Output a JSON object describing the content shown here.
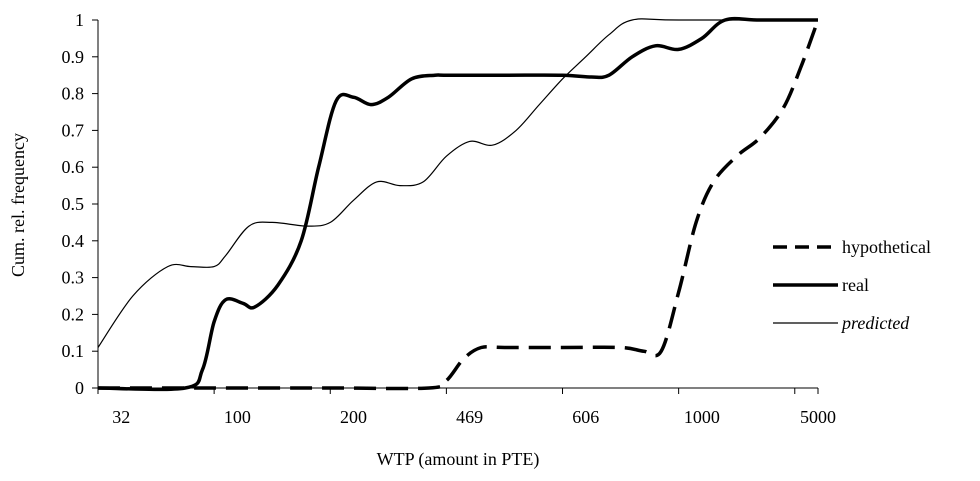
{
  "chart_data": {
    "type": "line",
    "title": "",
    "xlabel": "WTP (amount in PTE)",
    "ylabel": "Cum. rel. frequency",
    "x_tick_labels": [
      "32",
      "100",
      "200",
      "469",
      "606",
      "1000",
      "5000"
    ],
    "y_tick_labels": [
      "0",
      "0.1",
      "0.2",
      "0.3",
      "0.4",
      "0.5",
      "0.6",
      "0.7",
      "0.8",
      "0.9",
      "1"
    ],
    "ylim": [
      0,
      1
    ],
    "grid": false,
    "legend_position": "right",
    "x_scale": "categorical",
    "series": [
      {
        "name": "hypothetical",
        "style": "dashed-thick",
        "points": [
          [
            0.0,
            0
          ],
          [
            1.0,
            0
          ],
          [
            2.0,
            0
          ],
          [
            2.85,
            0
          ],
          [
            3.0,
            0.02
          ],
          [
            3.15,
            0.08
          ],
          [
            3.3,
            0.11
          ],
          [
            3.5,
            0.11
          ],
          [
            4.0,
            0.11
          ],
          [
            4.5,
            0.11
          ],
          [
            4.7,
            0.1
          ],
          [
            4.85,
            0.1
          ],
          [
            5.0,
            0.26
          ],
          [
            5.15,
            0.45
          ],
          [
            5.3,
            0.56
          ],
          [
            5.5,
            0.63
          ],
          [
            5.7,
            0.68
          ],
          [
            5.9,
            0.76
          ],
          [
            6.05,
            0.87
          ],
          [
            6.2,
            1.0
          ]
        ]
      },
      {
        "name": "real",
        "style": "solid-thick",
        "points": [
          [
            0.0,
            0
          ],
          [
            0.75,
            0
          ],
          [
            0.9,
            0.05
          ],
          [
            1.0,
            0.18
          ],
          [
            1.1,
            0.24
          ],
          [
            1.25,
            0.23
          ],
          [
            1.35,
            0.22
          ],
          [
            1.55,
            0.28
          ],
          [
            1.75,
            0.4
          ],
          [
            1.9,
            0.6
          ],
          [
            2.05,
            0.78
          ],
          [
            2.2,
            0.79
          ],
          [
            2.35,
            0.77
          ],
          [
            2.5,
            0.79
          ],
          [
            2.7,
            0.84
          ],
          [
            2.9,
            0.85
          ],
          [
            3.0,
            0.85
          ],
          [
            3.5,
            0.85
          ],
          [
            4.0,
            0.85
          ],
          [
            4.25,
            0.845
          ],
          [
            4.4,
            0.85
          ],
          [
            4.6,
            0.9
          ],
          [
            4.8,
            0.93
          ],
          [
            5.0,
            0.92
          ],
          [
            5.2,
            0.95
          ],
          [
            5.4,
            1.0
          ],
          [
            5.7,
            1.0
          ],
          [
            6.2,
            1.0
          ]
        ]
      },
      {
        "name": "predicted",
        "style": "solid-thin",
        "points": [
          [
            0.0,
            0.11
          ],
          [
            0.3,
            0.25
          ],
          [
            0.6,
            0.33
          ],
          [
            0.8,
            0.33
          ],
          [
            1.0,
            0.33
          ],
          [
            1.1,
            0.36
          ],
          [
            1.3,
            0.44
          ],
          [
            1.5,
            0.45
          ],
          [
            1.8,
            0.44
          ],
          [
            2.0,
            0.45
          ],
          [
            2.2,
            0.51
          ],
          [
            2.4,
            0.56
          ],
          [
            2.6,
            0.55
          ],
          [
            2.8,
            0.56
          ],
          [
            3.0,
            0.63
          ],
          [
            3.2,
            0.67
          ],
          [
            3.4,
            0.66
          ],
          [
            3.6,
            0.7
          ],
          [
            3.8,
            0.77
          ],
          [
            4.0,
            0.84
          ],
          [
            4.2,
            0.9
          ],
          [
            4.4,
            0.96
          ],
          [
            4.6,
            1.0
          ],
          [
            5.0,
            1.0
          ],
          [
            6.2,
            1.0
          ]
        ]
      }
    ]
  }
}
